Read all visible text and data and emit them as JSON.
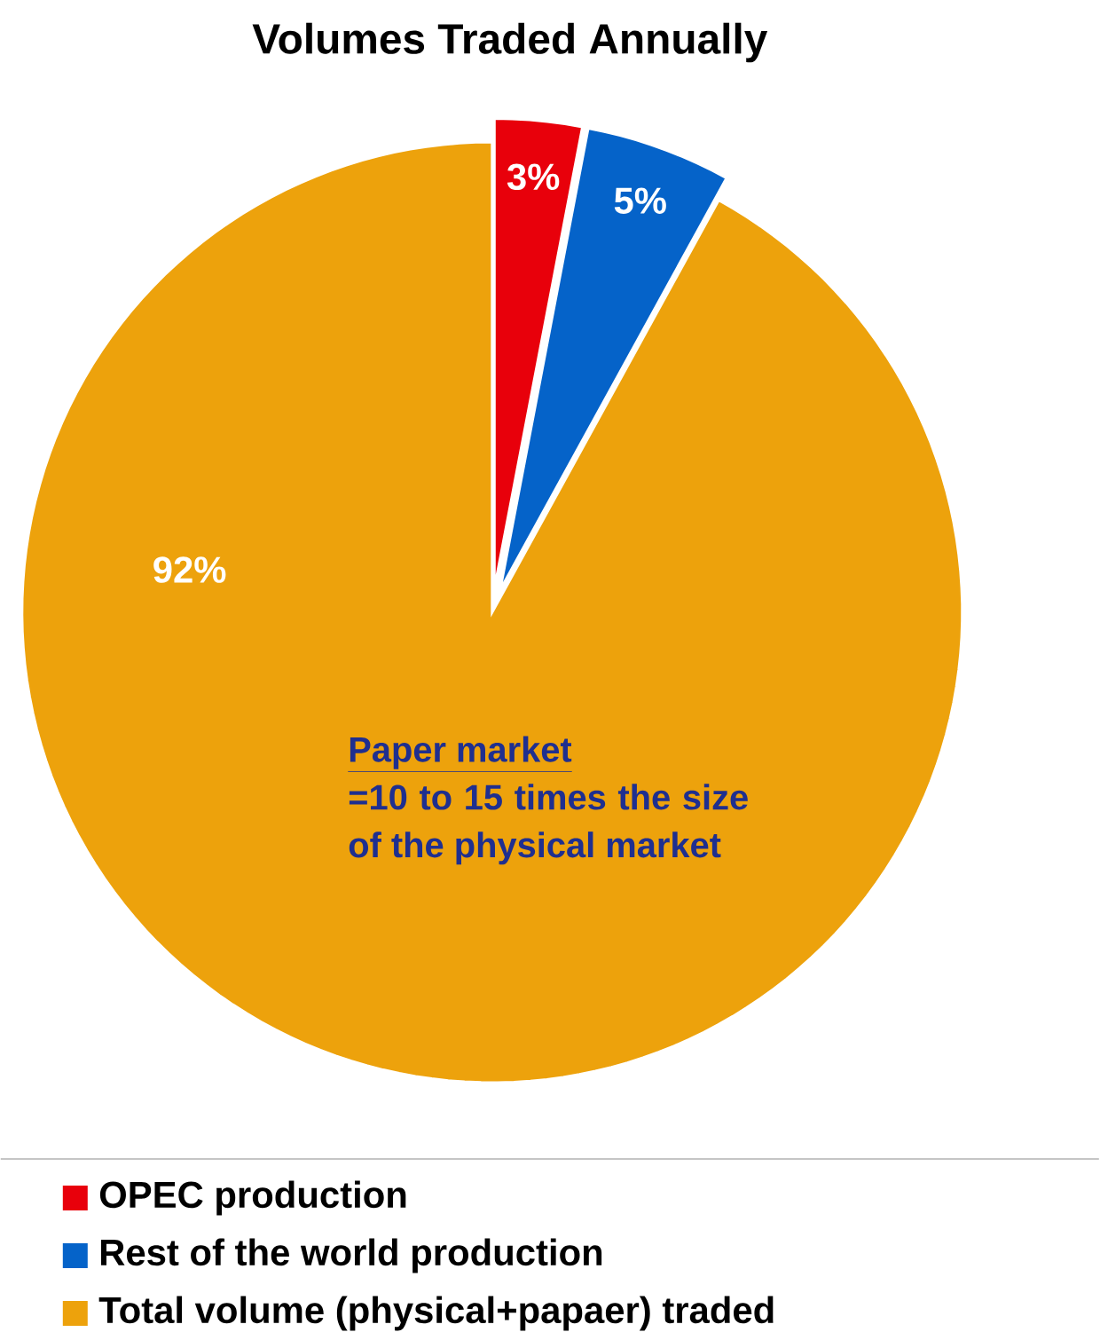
{
  "chart_data": {
    "type": "pie",
    "title": "Volumes Traded Annually",
    "categories": [
      "OPEC production",
      "Rest of the world production",
      "Total volume (physical+papaer) traded"
    ],
    "values": [
      3,
      5,
      92
    ],
    "colors": [
      "#e8000b",
      "#0563c9",
      "#eda20c"
    ],
    "value_labels": [
      "3%",
      "5%",
      "92%"
    ],
    "annotations": [
      "Paper market",
      "=10 to 15 times the size of the physical market"
    ],
    "legend": "bottom"
  }
}
